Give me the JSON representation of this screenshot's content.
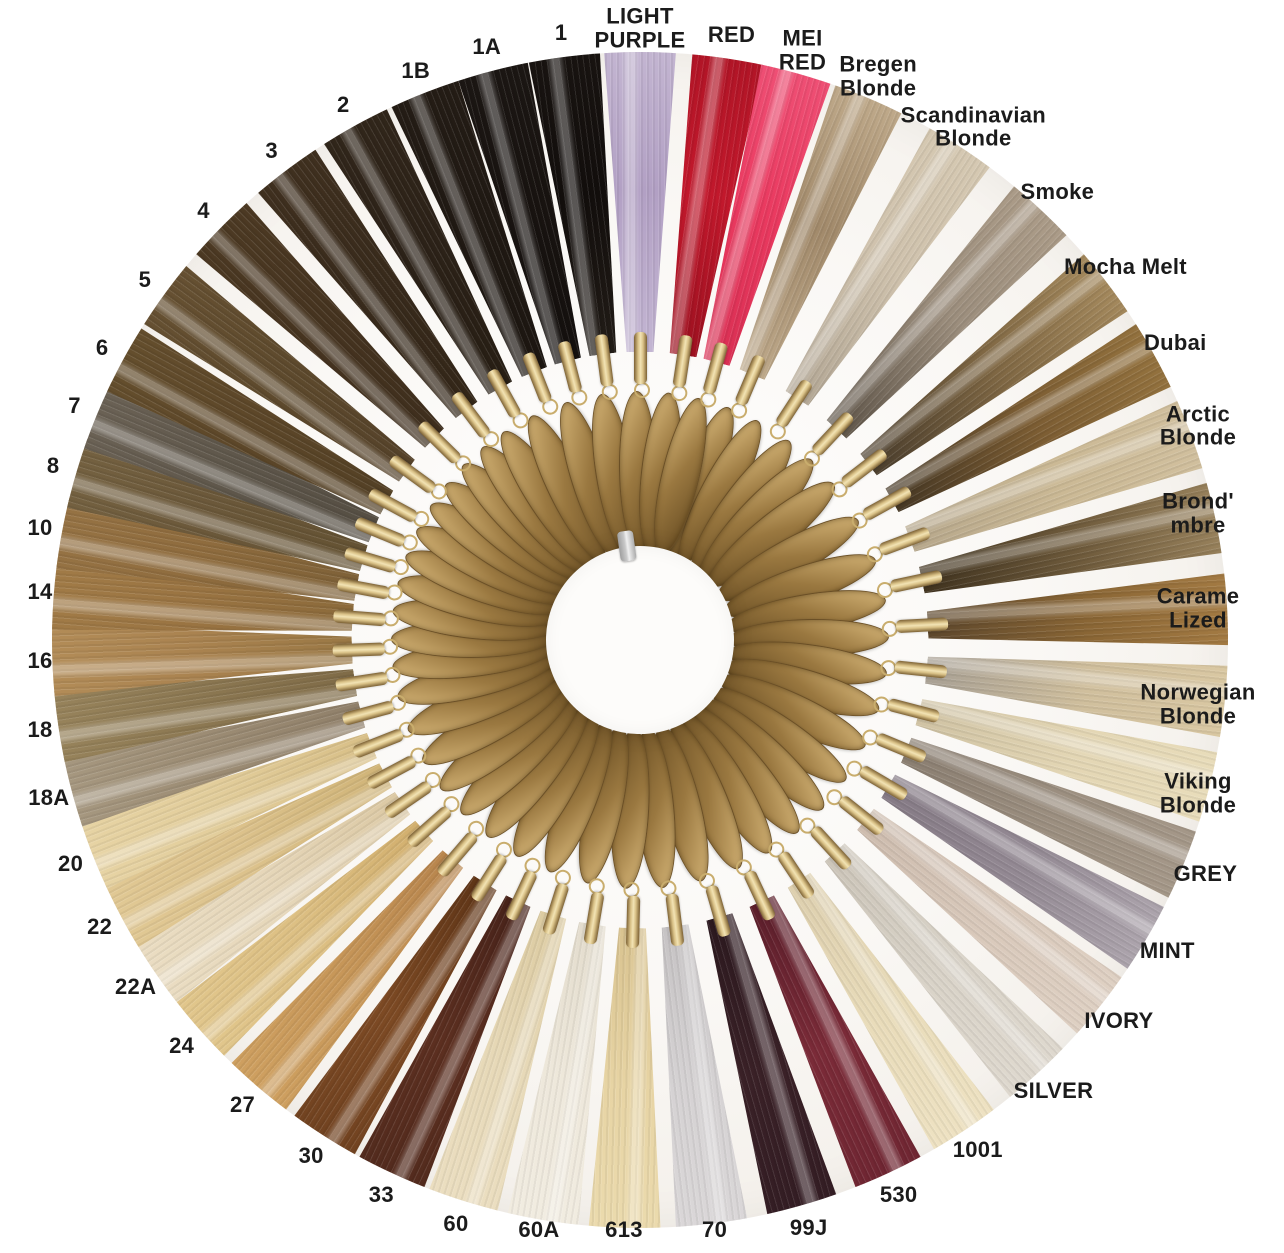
{
  "scene": {
    "type": "hair-extension color ring photograph",
    "colors": {
      "page_bg": "#ffffff",
      "circle_bg": "#faf8f5",
      "label_color": "#1b1b1b",
      "tag_gold_light": "#d2b275",
      "tag_gold_mid": "#9a7840",
      "tag_gold_dark": "#6e5226",
      "crimp_gold_light": "#f2e3b4",
      "crimp_gold_mid": "#d9c187",
      "crimp_gold_dark": "#7c6134",
      "jring_gold": "#c9ad6d",
      "clasp_silver": "#c9c9c9",
      "center_white": "#fdfcfa"
    },
    "swatches": [
      {
        "label": "1",
        "angle": 352.6,
        "colors": [
          "#221c17",
          "#120e0c",
          "#1a1512"
        ]
      },
      {
        "label": "LIGHT\nPURPLE",
        "angle": 0.0,
        "colors": [
          "#c3b5d2",
          "#b2a0c4",
          "#c7bad4"
        ]
      },
      {
        "label": "RED",
        "angle": 8.6,
        "colors": [
          "#9d1120",
          "#c2182c",
          "#ad1425"
        ]
      },
      {
        "label": "MEI\nRED",
        "angle": 15.4,
        "colors": [
          "#d92f53",
          "#ea3a60",
          "#f0557a"
        ]
      },
      {
        "label": "Bregen\nBlonde",
        "angle": 22.9,
        "colors": [
          "#bda88a",
          "#a28a6b",
          "#c6b192"
        ]
      },
      {
        "label": "Scandinavian\nBlonde",
        "angle": 33.0,
        "colors": [
          "#b3a795",
          "#cfc2ad",
          "#d7cab3"
        ]
      },
      {
        "label": "Smoke",
        "angle": 43.0,
        "colors": [
          "#60564a",
          "#9c8e7d",
          "#af9f8b"
        ]
      },
      {
        "label": "Mocha Melt",
        "angle": 52.5,
        "colors": [
          "#4b3e2d",
          "#806844",
          "#ad9163"
        ]
      },
      {
        "label": "Dubai",
        "angle": 61.0,
        "colors": [
          "#453724",
          "#7c5d33",
          "#997741"
        ]
      },
      {
        "label": "Arctic\nBlonde",
        "angle": 69.5,
        "colors": [
          "#b7a88c",
          "#cbb995",
          "#d2c1a0"
        ]
      },
      {
        "label": "Brond'\nmbre",
        "angle": 78.0,
        "colors": [
          "#40331f",
          "#6f5b3c",
          "#a18a63"
        ]
      },
      {
        "label": "Carame\nLized",
        "angle": 87.0,
        "colors": [
          "#5d472c",
          "#8a6635",
          "#a97f46"
        ]
      },
      {
        "label": "Norwegian\nBlonde",
        "angle": 96.0,
        "colors": [
          "#a8a094",
          "#d0bf9d",
          "#dccaa4"
        ]
      },
      {
        "label": "Viking\nBlonde",
        "angle": 104.5,
        "colors": [
          "#cfc2a3",
          "#e3d6b4",
          "#eadebc"
        ]
      },
      {
        "label": "GREY",
        "angle": 112.5,
        "colors": [
          "#8a7e71",
          "#9c8f80",
          "#a79a8b"
        ]
      },
      {
        "label": "MINT",
        "angle": 120.5,
        "colors": [
          "#857a85",
          "#948a94",
          "#b3abb3"
        ]
      },
      {
        "label": "IVORY",
        "angle": 128.5,
        "colors": [
          "#cdbcae",
          "#d9c9bb",
          "#e0d2c5"
        ]
      },
      {
        "label": "SILVER",
        "angle": 137.5,
        "colors": [
          "#ccc5b9",
          "#d9d3c8",
          "#e0dad0"
        ]
      },
      {
        "label": "1001",
        "angle": 146.5,
        "colors": [
          "#ddcfae",
          "#e9dcba",
          "#efe3c4"
        ]
      },
      {
        "label": "530",
        "angle": 155.0,
        "colors": [
          "#5c1f2b",
          "#7b2b38",
          "#6d2531"
        ]
      },
      {
        "label": "99J",
        "angle": 164.0,
        "colors": [
          "#2c191f",
          "#3a2127",
          "#321c23"
        ]
      },
      {
        "label": "70",
        "angle": 173.0,
        "colors": [
          "#c6c3c4",
          "#d5d2d3",
          "#dbd8d9"
        ]
      },
      {
        "label": "613",
        "angle": 181.5,
        "colors": [
          "#d9c390",
          "#e7d4a4",
          "#ecdcb0"
        ]
      },
      {
        "label": "60A",
        "angle": 189.5,
        "colors": [
          "#e3dccd",
          "#eee8db",
          "#f2ede2"
        ]
      },
      {
        "label": "60",
        "angle": 197.5,
        "colors": [
          "#dccba1",
          "#e7d9b8",
          "#ecdfc2"
        ]
      },
      {
        "label": "33",
        "angle": 205.0,
        "colors": [
          "#48231a",
          "#5c2f20",
          "#512a1d"
        ]
      },
      {
        "label": "30",
        "angle": 212.5,
        "colors": [
          "#5f3517",
          "#7d4a24",
          "#6f4120"
        ]
      },
      {
        "label": "27",
        "angle": 220.5,
        "colors": [
          "#b8854d",
          "#c79759",
          "#d0a262"
        ]
      },
      {
        "label": "24",
        "angle": 228.5,
        "colors": [
          "#d2af6e",
          "#ddc084",
          "#e2c88e"
        ]
      },
      {
        "label": "22A",
        "angle": 235.5,
        "colors": [
          "#dcc9a4",
          "#e6d7ba",
          "#ebdec4"
        ]
      },
      {
        "label": "22",
        "angle": 242.0,
        "colors": [
          "#d0b478",
          "#dcc28c",
          "#e2ca96"
        ]
      },
      {
        "label": "20",
        "angle": 248.5,
        "colors": [
          "#d8bf87",
          "#e2cd9b",
          "#e8d5a6"
        ]
      },
      {
        "label": "18A",
        "angle": 255.0,
        "colors": [
          "#90806a",
          "#9c8c74",
          "#a89a82"
        ]
      },
      {
        "label": "18",
        "angle": 261.5,
        "colors": [
          "#7f6b47",
          "#8c7852",
          "#99855d"
        ]
      },
      {
        "label": "16",
        "angle": 268.0,
        "colors": [
          "#9a7845",
          "#aa8350",
          "#b48e59"
        ]
      },
      {
        "label": "14",
        "angle": 274.5,
        "colors": [
          "#8b6a3b",
          "#9a7442",
          "#a27c48"
        ]
      },
      {
        "label": "10",
        "angle": 280.5,
        "colors": [
          "#7e6138",
          "#8f6c3e",
          "#977445"
        ]
      },
      {
        "label": "8",
        "angle": 286.5,
        "colors": [
          "#645233",
          "#6b583a",
          "#766342"
        ]
      },
      {
        "label": "7",
        "angle": 292.5,
        "colors": [
          "#554e43",
          "#5f574b",
          "#6d6457"
        ]
      },
      {
        "label": "6",
        "angle": 298.5,
        "colors": [
          "#534025",
          "#5d4729",
          "#66502e"
        ]
      },
      {
        "label": "5",
        "angle": 306.0,
        "colors": [
          "#55422a",
          "#5e4a2d",
          "#685233"
        ]
      },
      {
        "label": "4",
        "angle": 314.5,
        "colors": [
          "#3e2e1d",
          "#463420",
          "#4e3b24"
        ]
      },
      {
        "label": "3",
        "angle": 323.0,
        "colors": [
          "#332618",
          "#392b1c",
          "#413120"
        ]
      },
      {
        "label": "2",
        "angle": 331.0,
        "colors": [
          "#271e14",
          "#2c2218",
          "#32271b"
        ]
      },
      {
        "label": "1B",
        "angle": 338.5,
        "colors": [
          "#1c1611",
          "#201913",
          "#251d16"
        ]
      },
      {
        "label": "1A",
        "angle": 345.5,
        "colors": [
          "#14100e",
          "#181310",
          "#1c1714"
        ]
      }
    ]
  }
}
